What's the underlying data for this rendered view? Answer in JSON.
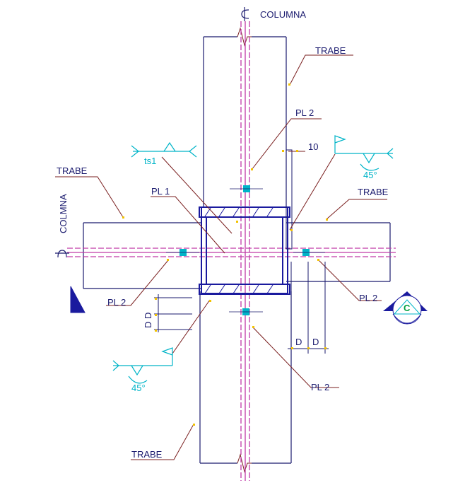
{
  "labels": {
    "cl_columna_top": "COLUMNA",
    "trabe_top_right": "TRABE",
    "pl2_top": "PL 2",
    "dim_10": "10",
    "weld_ts1": "ts1",
    "trabe_left": "TRABE",
    "cl_colmna_left": "COLMNA",
    "pl1": "PL 1",
    "trabe_right": "TRABE",
    "angle_45_right": "45°",
    "pl2_left": "PL 2",
    "dd_vertical": "D D",
    "pl2_right": "PL 2",
    "dd_horizontal_d1": "D",
    "dd_horizontal_d2": "D",
    "weld_c": "C",
    "angle_45_left": "45°",
    "pl2_bottom": "PL 2",
    "trabe_bottom": "TRABE"
  },
  "colors": {
    "structure": "#1a1a6e",
    "leader": "#7a1f1f",
    "centerline": "#c03aa8",
    "weld": "#00b4c8",
    "marker": "#f2c200",
    "section": "#1a1a9e"
  }
}
